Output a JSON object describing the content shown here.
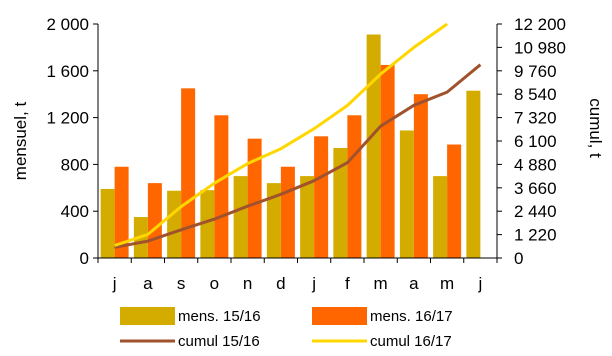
{
  "chart_data": {
    "type": "bar",
    "categories": [
      "j",
      "a",
      "s",
      "o",
      "n",
      "d",
      "j",
      "f",
      "m",
      "a",
      "m",
      "j"
    ],
    "bar_series": [
      {
        "name": "mens. 15/16",
        "color": "#D4AC00",
        "values": [
          590,
          350,
          575,
          580,
          700,
          640,
          700,
          940,
          1910,
          1090,
          700,
          1430
        ]
      },
      {
        "name": "mens. 16/17",
        "color": "#FF6600",
        "values": [
          780,
          640,
          1450,
          1220,
          1020,
          780,
          1040,
          1220,
          1650,
          1400,
          970,
          null
        ]
      }
    ],
    "line_series": [
      {
        "name": "cumul 15/16",
        "color": "#A0522D",
        "values": [
          560,
          880,
          1470,
          2030,
          2700,
          3320,
          4030,
          4970,
          6870,
          7960,
          8650,
          10080
        ]
      },
      {
        "name": "cumul 16/17",
        "color": "#FFD700",
        "values": [
          650,
          1230,
          2680,
          3900,
          4920,
          5700,
          6740,
          7950,
          9590,
          10980,
          12200,
          null
        ]
      }
    ],
    "y_left": {
      "label": "mensuel, t",
      "ylim": [
        0,
        2000
      ],
      "ticks": [
        0,
        400,
        800,
        1200,
        1600,
        2000
      ],
      "tick_labels": [
        "0",
        "400",
        "800",
        "1 200",
        "1 600",
        "2 000"
      ]
    },
    "y_right": {
      "label": "cumul, t",
      "ylim": [
        0,
        12200
      ],
      "ticks": [
        0,
        1220,
        2440,
        3660,
        4880,
        6100,
        7320,
        8540,
        9760,
        10980,
        12200
      ],
      "tick_labels": [
        "0",
        "1 220",
        "2 440",
        "3 660",
        "4 880",
        "6 100",
        "7 320",
        "8 540",
        "9 760",
        "10 980",
        "12 200"
      ]
    },
    "legend_position": "bottom",
    "grid": false
  }
}
